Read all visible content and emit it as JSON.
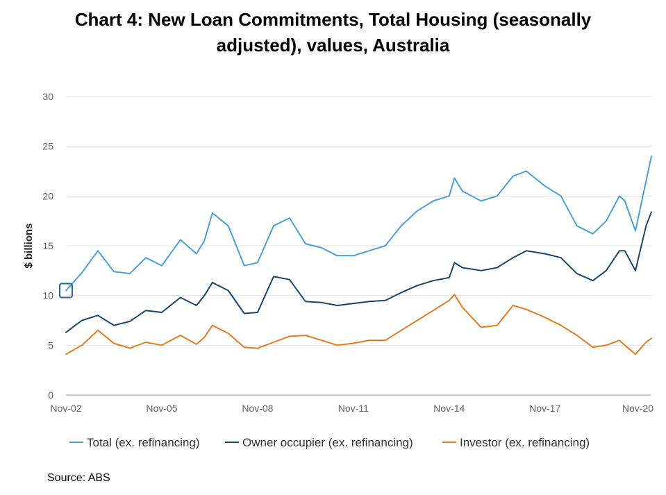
{
  "title_line1": "Chart 4: New Loan Commitments, Total Housing (seasonally",
  "title_line2": "adjusted), values, Australia",
  "source": "Source: ABS",
  "chart_data": {
    "type": "line",
    "title": "Chart 4: New Loan Commitments, Total Housing (seasonally adjusted), values, Australia",
    "xlabel": "",
    "ylabel": "$ billions",
    "ylim": [
      0,
      30
    ],
    "yticks": [
      "0",
      "5",
      "10",
      "15",
      "20",
      "25",
      "30"
    ],
    "xticks": [
      "Nov-02",
      "Nov-05",
      "Nov-08",
      "Nov-11",
      "Nov-14",
      "Nov-17",
      "Nov-20"
    ],
    "grid": "horizontal",
    "legend": "bottom",
    "series": [
      {
        "name": "Total (ex. refinancing)",
        "color": "#4a9fd5",
        "x": [
          "Nov-02",
          "May-03",
          "Nov-03",
          "May-04",
          "Nov-04",
          "May-05",
          "Nov-05",
          "Jun-06",
          "Dec-06",
          "Mar-07",
          "Jun-07",
          "Dec-07",
          "Jun-08",
          "Nov-08",
          "May-09",
          "Nov-09",
          "May-10",
          "Nov-10",
          "May-11",
          "Nov-11",
          "May-12",
          "Nov-12",
          "May-13",
          "Nov-13",
          "May-14",
          "Nov-14",
          "Jan-15",
          "Apr-15",
          "Nov-15",
          "May-16",
          "Nov-16",
          "Apr-17",
          "Nov-17",
          "May-18",
          "Nov-18",
          "May-19",
          "Oct-19",
          "Mar-20",
          "May-20",
          "Sep-20",
          "Jan-21",
          "Mar-21"
        ],
        "values": [
          10.5,
          12.3,
          14.5,
          12.4,
          12.2,
          13.8,
          13.0,
          15.6,
          14.2,
          15.5,
          18.3,
          17.0,
          13.0,
          13.3,
          17.0,
          17.8,
          15.2,
          14.8,
          14.0,
          14.0,
          14.5,
          15.0,
          17.0,
          18.5,
          19.5,
          20.0,
          21.8,
          20.5,
          19.5,
          20.0,
          22.0,
          22.5,
          21.0,
          20.0,
          17.0,
          16.2,
          17.5,
          20.0,
          19.5,
          16.5,
          21.5,
          24.0
        ]
      },
      {
        "name": "Owner occupier (ex. refinancing)",
        "color": "#1b4566",
        "x": [
          "Nov-02",
          "May-03",
          "Nov-03",
          "May-04",
          "Nov-04",
          "May-05",
          "Nov-05",
          "Jun-06",
          "Dec-06",
          "Mar-07",
          "Jun-07",
          "Dec-07",
          "Jun-08",
          "Nov-08",
          "May-09",
          "Nov-09",
          "May-10",
          "Nov-10",
          "May-11",
          "Nov-11",
          "May-12",
          "Nov-12",
          "May-13",
          "Nov-13",
          "May-14",
          "Nov-14",
          "Jan-15",
          "Apr-15",
          "Nov-15",
          "May-16",
          "Nov-16",
          "Apr-17",
          "Nov-17",
          "May-18",
          "Nov-18",
          "May-19",
          "Oct-19",
          "Mar-20",
          "May-20",
          "Sep-20",
          "Jan-21",
          "Mar-21"
        ],
        "values": [
          6.3,
          7.5,
          8.0,
          7.0,
          7.4,
          8.5,
          8.3,
          9.8,
          9.0,
          10.0,
          11.3,
          10.5,
          8.2,
          8.3,
          11.9,
          11.6,
          9.4,
          9.3,
          9.0,
          9.2,
          9.4,
          9.5,
          10.3,
          11.0,
          11.5,
          11.8,
          13.3,
          12.8,
          12.5,
          12.8,
          13.8,
          14.5,
          14.2,
          13.8,
          12.2,
          11.5,
          12.5,
          14.5,
          14.5,
          12.5,
          17.0,
          18.4
        ]
      },
      {
        "name": "Investor (ex. refinancing)",
        "color": "#e07b24",
        "x": [
          "Nov-02",
          "May-03",
          "Nov-03",
          "May-04",
          "Nov-04",
          "May-05",
          "Nov-05",
          "Jun-06",
          "Dec-06",
          "Mar-07",
          "Jun-07",
          "Dec-07",
          "Jun-08",
          "Nov-08",
          "May-09",
          "Nov-09",
          "May-10",
          "Nov-10",
          "May-11",
          "Nov-11",
          "May-12",
          "Nov-12",
          "May-13",
          "Nov-13",
          "May-14",
          "Nov-14",
          "Jan-15",
          "Apr-15",
          "Nov-15",
          "May-16",
          "Nov-16",
          "Apr-17",
          "Nov-17",
          "May-18",
          "Nov-18",
          "May-19",
          "Oct-19",
          "Mar-20",
          "May-20",
          "Sep-20",
          "Jan-21",
          "Mar-21"
        ],
        "values": [
          4.1,
          5.0,
          6.5,
          5.2,
          4.7,
          5.3,
          5.0,
          6.0,
          5.1,
          5.8,
          7.0,
          6.2,
          4.8,
          4.7,
          5.3,
          5.9,
          6.0,
          5.5,
          5.0,
          5.2,
          5.5,
          5.5,
          6.5,
          7.5,
          8.5,
          9.5,
          10.1,
          8.8,
          6.8,
          7.0,
          9.0,
          8.6,
          7.8,
          7.0,
          6.0,
          4.8,
          5.0,
          5.5,
          5.0,
          4.1,
          5.3,
          5.7
        ]
      }
    ]
  }
}
